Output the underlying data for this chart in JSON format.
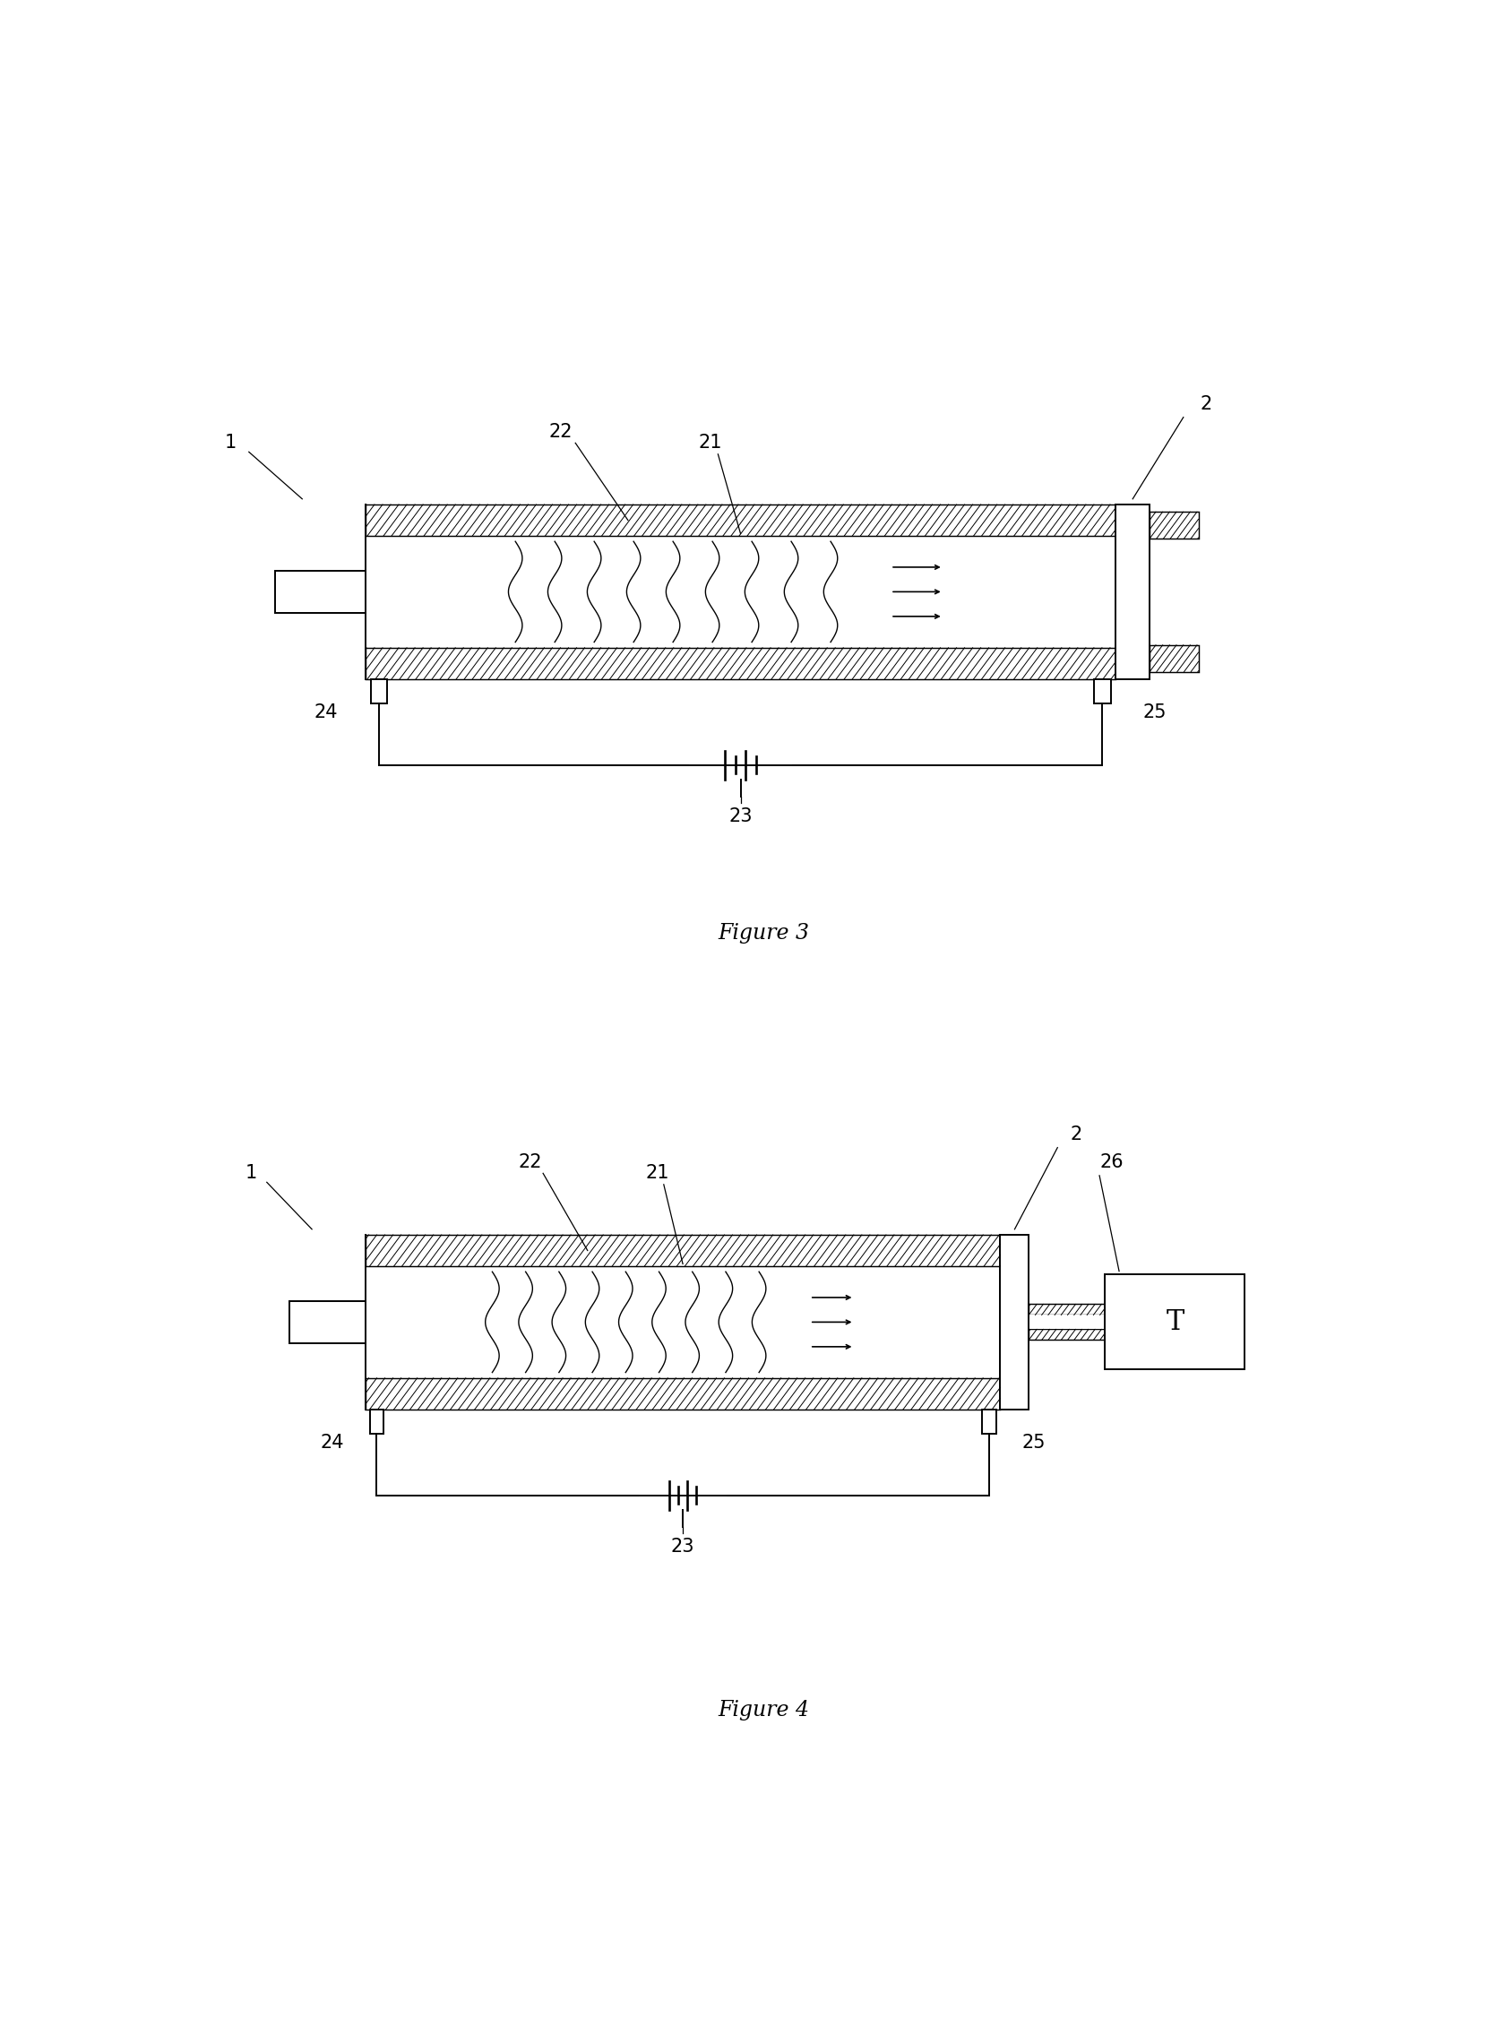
{
  "bg_color": "#ffffff",
  "line_color": "#000000",
  "fig3_title": "Figure 3",
  "fig4_title": "Figure 4",
  "title_fontsize": 17,
  "label_fontsize": 15,
  "lw": 1.4,
  "hatch_lw": 0.7,
  "hatch_step": 0.007
}
